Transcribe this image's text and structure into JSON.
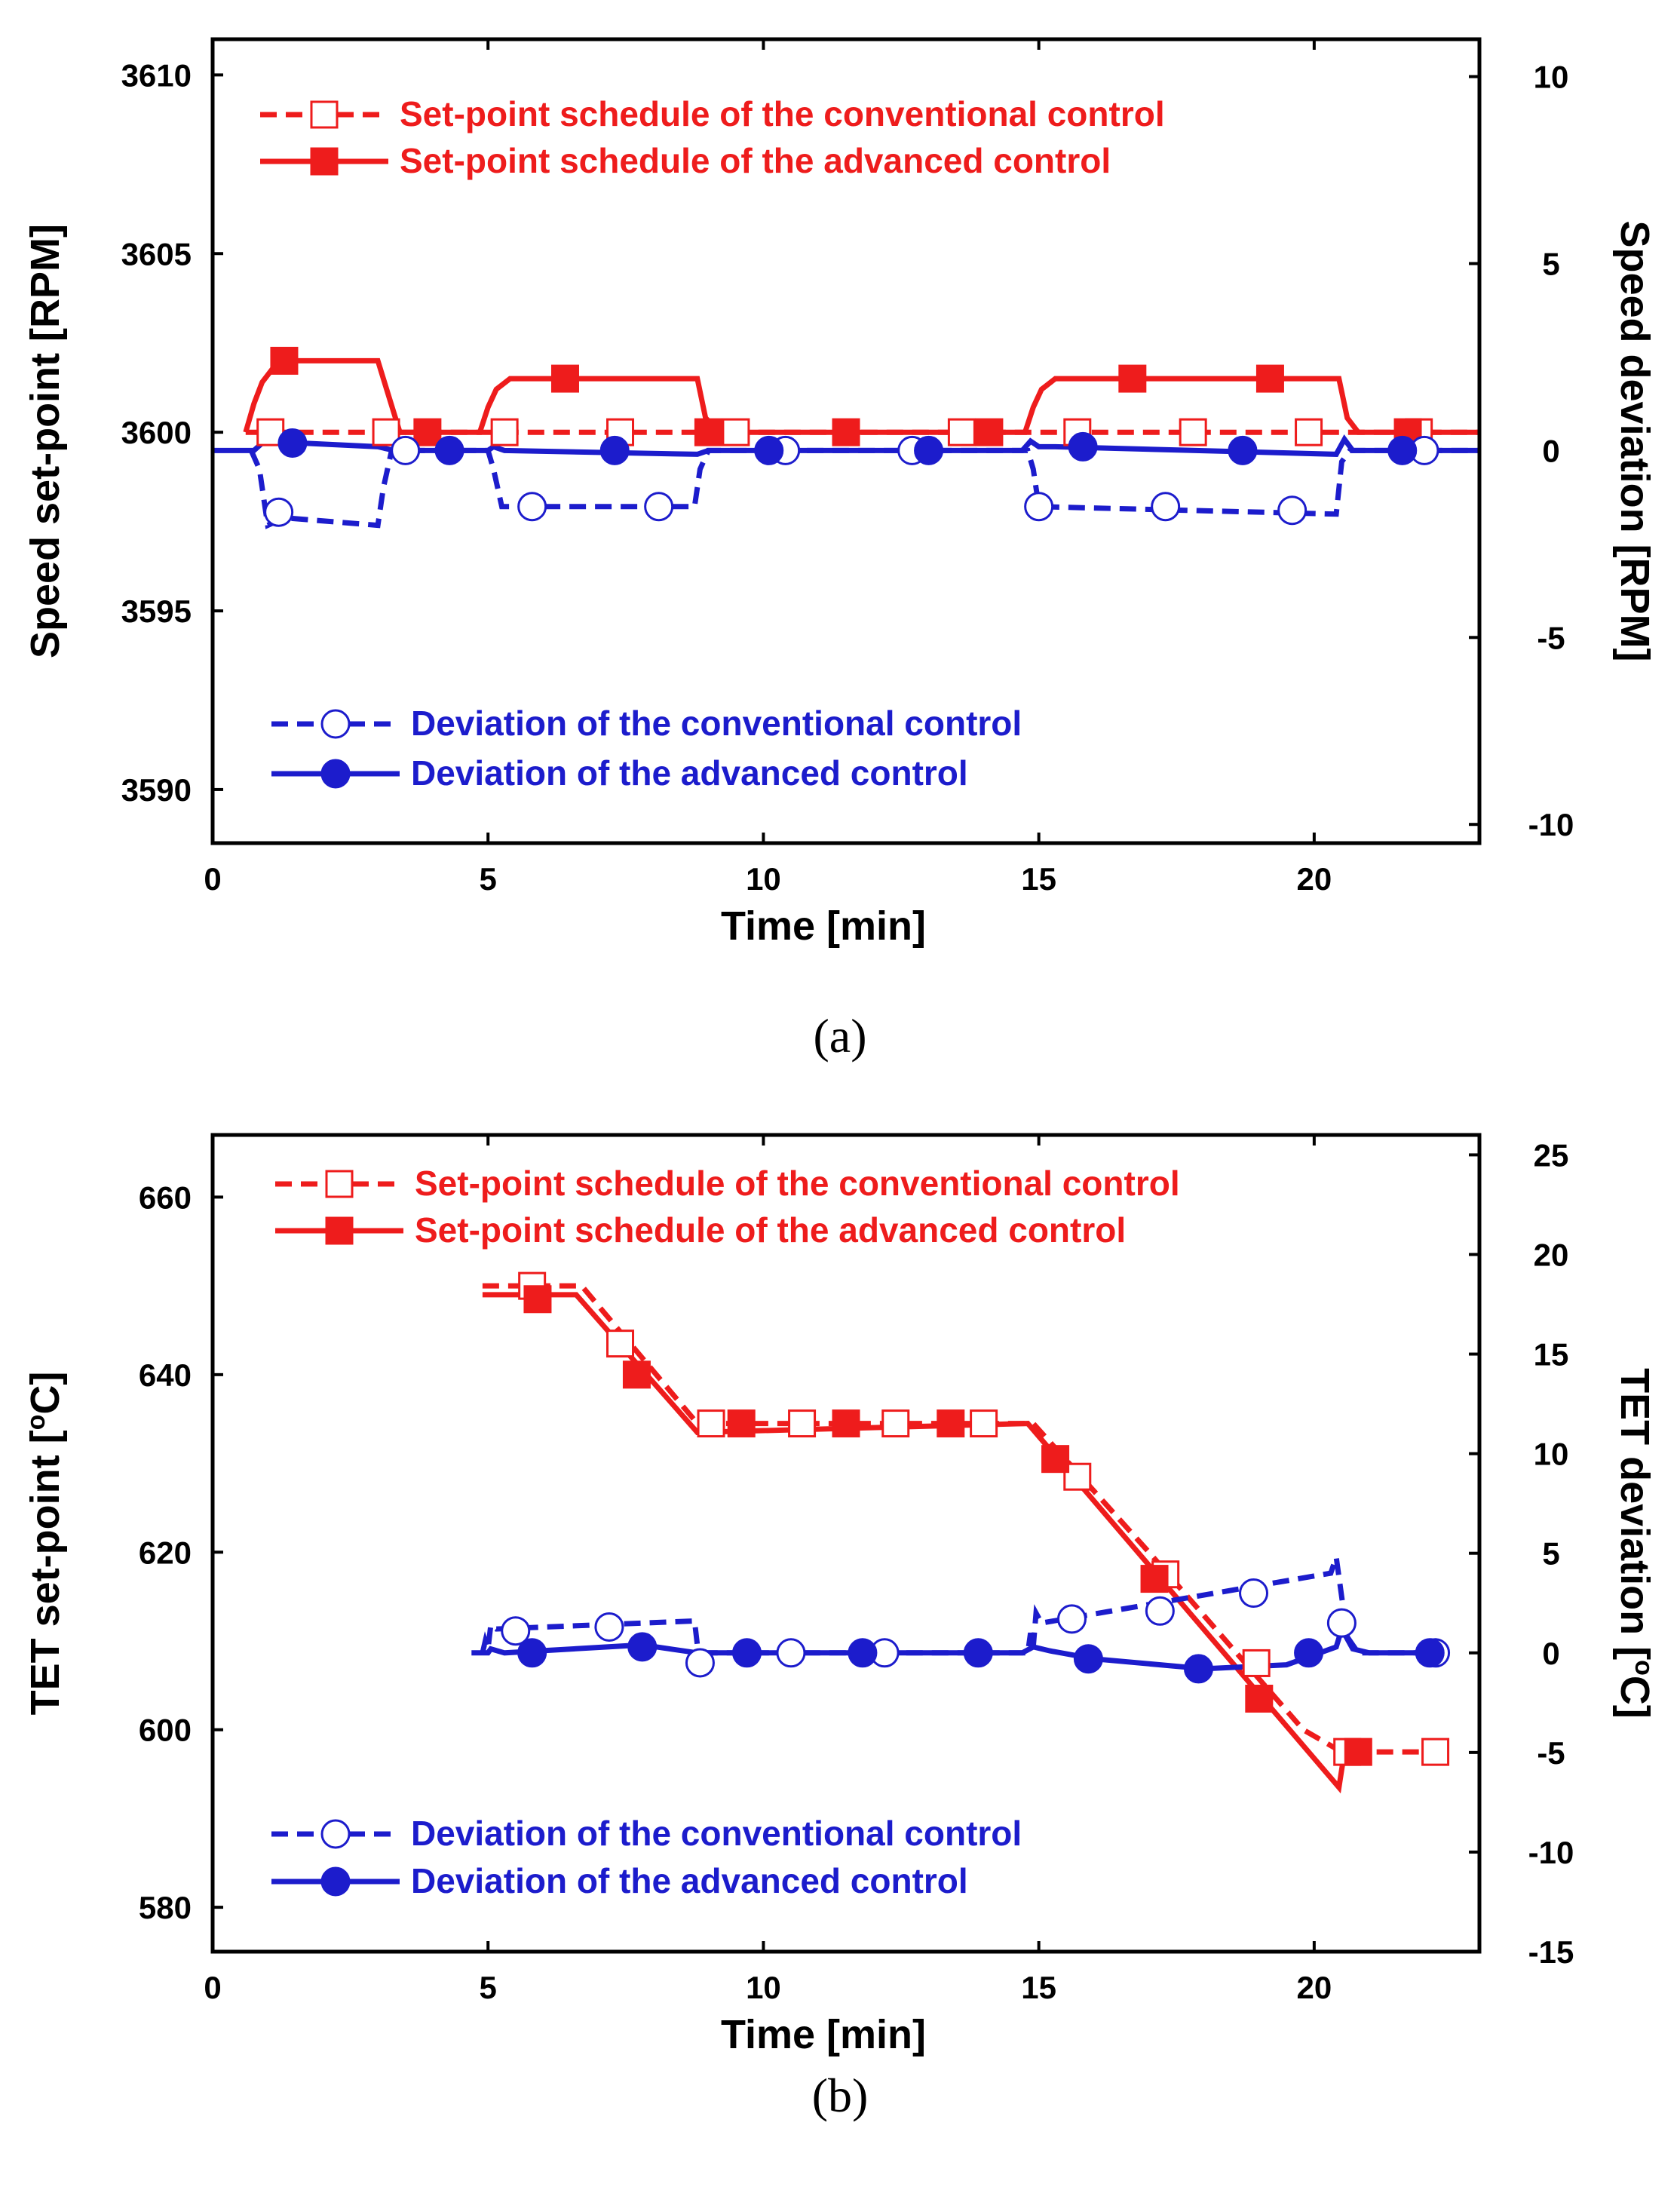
{
  "colors": {
    "red": "#ee1c1c",
    "blue": "#1c1ccc",
    "axis": "#000000"
  },
  "chart_data": [
    {
      "type": "line",
      "caption": "(a)",
      "xlabel": "Time [min]",
      "ylabel_left": "Speed set-point [RPM]",
      "ylabel_right": "Speed deviation [RPM]",
      "xlim": [
        0,
        23
      ],
      "ylim_left": [
        3588.5,
        3611
      ],
      "ylim_right": [
        -10.5,
        11
      ],
      "x_ticks": [
        0,
        5,
        10,
        15,
        20
      ],
      "y_left_ticks": [
        3590,
        3595,
        3600,
        3605,
        3610
      ],
      "y_right_ticks": [
        -10,
        -5,
        0,
        5,
        10
      ],
      "legend_top": [
        "Set-point schedule of  the conventional control",
        "Set-point schedule of the advanced control"
      ],
      "legend_bottom": [
        "Deviation of the conventional control",
        "Deviation of the advanced control"
      ],
      "series": [
        {
          "name": "Set-point schedule of  the conventional control",
          "axis": "left",
          "color": "red",
          "dash": true,
          "marker": "square-open",
          "x": [
            0.6,
            23
          ],
          "y": [
            3600,
            3600
          ],
          "marker_x": [
            1.05,
            3.15,
            5.3,
            7.4,
            9.5,
            13.6,
            15.7,
            17.8,
            19.9,
            21.9
          ],
          "marker_y": [
            3600,
            3600,
            3600,
            3600,
            3600,
            3600,
            3600,
            3600,
            3600,
            3600
          ]
        },
        {
          "name": "Set-point schedule of the advanced control",
          "axis": "left",
          "color": "red",
          "dash": false,
          "marker": "square-filled",
          "x": [
            0.6,
            0.75,
            0.9,
            1.1,
            1.3,
            1.6,
            3.0,
            3.2,
            3.4,
            4.85,
            5.0,
            5.15,
            5.4,
            5.8,
            8.8,
            8.95,
            9.2,
            14.75,
            14.9,
            15.05,
            15.3,
            15.7,
            20.45,
            20.6,
            20.8,
            23
          ],
          "y": [
            3600,
            3600.8,
            3601.4,
            3601.8,
            3602.0,
            3602.0,
            3602.0,
            3601.0,
            3600,
            3600,
            3600.7,
            3601.2,
            3601.5,
            3601.5,
            3601.5,
            3600.4,
            3600,
            3600,
            3600.7,
            3601.2,
            3601.5,
            3601.5,
            3601.5,
            3600.4,
            3600,
            3600
          ],
          "marker_x": [
            1.3,
            3.9,
            6.4,
            9.0,
            11.5,
            14.1,
            16.7,
            19.2,
            21.7
          ],
          "marker_y": [
            3602.0,
            3600,
            3601.5,
            3600,
            3600,
            3600,
            3601.5,
            3601.5,
            3600
          ]
        },
        {
          "name": "Deviation of the conventional control",
          "axis": "right",
          "color": "blue",
          "dash": true,
          "marker": "circle-open",
          "x": [
            0.7,
            0.85,
            1.0,
            1.3,
            3.0,
            3.1,
            3.25,
            3.5,
            5.0,
            5.1,
            5.25,
            8.75,
            8.85,
            9.0,
            9.5,
            14.8,
            14.9,
            15.0,
            20.4,
            20.5,
            20.65,
            21.0,
            23
          ],
          "y": [
            0,
            -0.5,
            -2.0,
            -1.8,
            -2.0,
            -1.0,
            0,
            0,
            0,
            -0.5,
            -1.5,
            -1.5,
            -0.5,
            0,
            0,
            0,
            -0.5,
            -1.5,
            -1.7,
            -0.3,
            0,
            0,
            0
          ],
          "marker_x": [
            1.2,
            3.5,
            5.8,
            8.1,
            10.4,
            12.7,
            15.0,
            17.3,
            19.6,
            22.0
          ],
          "marker_y": [
            -1.65,
            0,
            -1.5,
            -1.5,
            0,
            0,
            -1.5,
            -1.5,
            -1.6,
            0
          ]
        },
        {
          "name": "Deviation of the advanced control",
          "axis": "right",
          "color": "blue",
          "dash": false,
          "marker": "circle-filled",
          "x": [
            0,
            0.75,
            0.9,
            1.1,
            1.3,
            1.6,
            3.0,
            3.3,
            5.0,
            5.1,
            5.3,
            8.8,
            9.0,
            9.3,
            14.7,
            14.85,
            15.0,
            15.3,
            20.4,
            20.55,
            20.7,
            23
          ],
          "y": [
            0,
            0,
            0.2,
            0.4,
            0.3,
            0.2,
            0.1,
            0,
            0,
            0.1,
            0,
            -0.1,
            0,
            0,
            0,
            0.25,
            0.1,
            0.1,
            -0.1,
            0.3,
            0,
            0
          ],
          "marker_x": [
            1.45,
            4.3,
            7.3,
            10.1,
            13.0,
            15.8,
            18.7,
            21.6
          ],
          "marker_y": [
            0.2,
            0,
            0,
            0,
            0,
            0.1,
            0,
            0
          ]
        }
      ]
    },
    {
      "type": "line",
      "caption": "(b)",
      "xlabel": "Time [min]",
      "ylabel_left": "TET set-point [",
      "ylabel_left_sup": "o",
      "ylabel_left_tail": "C]",
      "ylabel_right": "TET deviation [",
      "ylabel_right_sup": "o",
      "ylabel_right_tail": "C]",
      "xlim": [
        0,
        23
      ],
      "ylim_left": [
        575,
        667
      ],
      "ylim_right": [
        -15,
        26
      ],
      "x_ticks": [
        0,
        5,
        10,
        15,
        20
      ],
      "y_left_ticks": [
        580,
        600,
        620,
        640,
        660
      ],
      "y_right_ticks": [
        -15,
        -10,
        -5,
        0,
        5,
        10,
        15,
        20,
        25
      ],
      "legend_top": [
        "Set-point schedule of the conventional control",
        "Set-point schedule of the advanced control"
      ],
      "legend_bottom": [
        "Deviation of the conventional control",
        "Deviation of the advanced control"
      ],
      "series": [
        {
          "name": "Set-point schedule of the conventional control",
          "axis": "left",
          "color": "red",
          "dash": true,
          "marker": "square-open",
          "x": [
            4.9,
            6.7,
            8.8,
            14.9,
            17.0,
            19.8,
            20.5,
            22.3
          ],
          "y": [
            650,
            650,
            634.5,
            634.5,
            620,
            600,
            597.5,
            597.5
          ],
          "marker_x": [
            5.8,
            7.4,
            9.05,
            10.7,
            12.4,
            14.0,
            15.7,
            17.3,
            18.95,
            20.6,
            22.2
          ],
          "marker_y": [
            650,
            643.5,
            634.5,
            634.5,
            634.5,
            634.5,
            628.5,
            617.5,
            607.5,
            597.5,
            597.5
          ]
        },
        {
          "name": "Set-point schedule of the advanced control",
          "axis": "left",
          "color": "red",
          "dash": false,
          "marker": "square-filled",
          "x": [
            4.9,
            6.6,
            8.8,
            14.8,
            20.45,
            20.55,
            21.0
          ],
          "y": [
            649,
            649,
            633.5,
            634.5,
            593.5,
            597.5,
            597.5
          ],
          "marker_x": [
            5.9,
            7.7,
            9.6,
            11.5,
            13.4,
            15.3,
            17.1,
            19.0,
            20.8
          ],
          "marker_y": [
            648.5,
            640,
            634.5,
            634.5,
            634.5,
            630.5,
            617,
            603.5,
            597.5
          ]
        },
        {
          "name": "Deviation of the conventional control",
          "axis": "right",
          "color": "blue",
          "dash": true,
          "marker": "circle-open",
          "x": [
            4.9,
            4.95,
            5.0,
            5.05,
            5.15,
            8.75,
            8.8,
            8.9,
            9.2,
            14.8,
            14.85,
            14.9,
            14.95,
            15.05,
            20.3,
            20.4,
            20.6,
            20.8,
            21.0,
            22.3
          ],
          "y": [
            0,
            0.6,
            0.2,
            1.4,
            1.2,
            1.6,
            0.4,
            0,
            0,
            0,
            1.0,
            0.3,
            2.0,
            1.5,
            4.0,
            4.8,
            0.8,
            0,
            0,
            0
          ],
          "marker_x": [
            5.5,
            7.2,
            8.85,
            10.5,
            12.2,
            15.6,
            17.2,
            18.9,
            20.5,
            22.2
          ],
          "marker_y": [
            1.1,
            1.3,
            -0.5,
            0,
            0,
            1.7,
            2.1,
            3.0,
            1.5,
            0
          ]
        },
        {
          "name": "Deviation of the advanced control",
          "axis": "right",
          "color": "blue",
          "dash": false,
          "marker": "circle-filled",
          "x": [
            4.7,
            5.0,
            5.05,
            5.3,
            7.8,
            8.8,
            9.0,
            14.7,
            14.9,
            15.2,
            16.0,
            18.0,
            19.5,
            20.4,
            20.5,
            20.7,
            21.0,
            22.3
          ],
          "y": [
            0,
            0,
            0.2,
            0,
            0.4,
            0,
            0,
            0,
            0.3,
            0.1,
            -0.3,
            -0.8,
            -0.6,
            0.3,
            1.2,
            0.2,
            0,
            0
          ],
          "marker_x": [
            5.8,
            7.8,
            9.7,
            11.8,
            13.9,
            15.9,
            17.9,
            19.9,
            22.1
          ],
          "marker_y": [
            0,
            0.3,
            0,
            0,
            0,
            -0.3,
            -0.8,
            0,
            0
          ]
        }
      ]
    }
  ]
}
